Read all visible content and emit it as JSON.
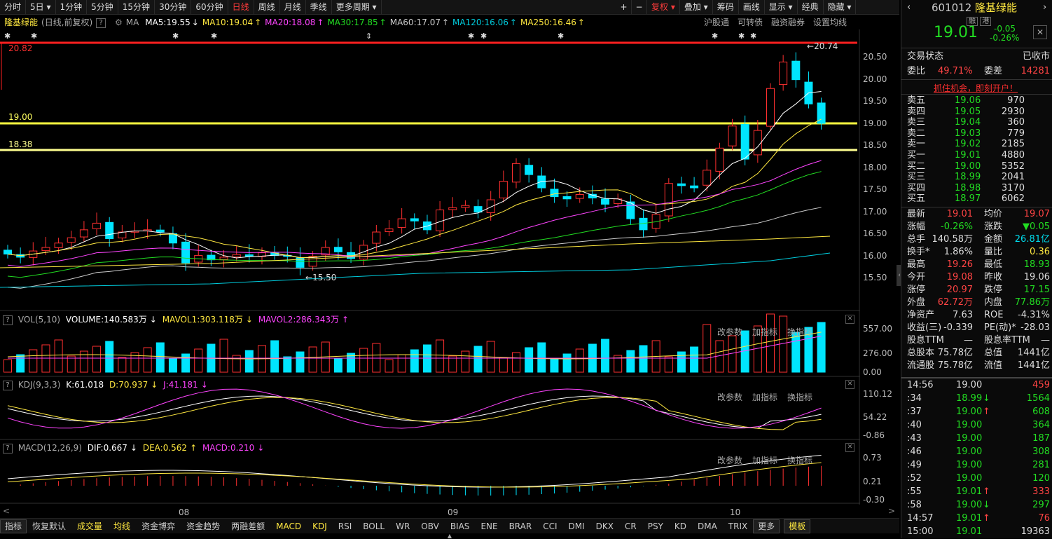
{
  "toolbar": {
    "periods": [
      "分时",
      "5日",
      "1分钟",
      "5分钟",
      "15分钟",
      "30分钟",
      "60分钟",
      "日线",
      "周线",
      "月线",
      "季线",
      "更多周期"
    ],
    "active": "日线",
    "right": [
      "+",
      "−",
      "复权",
      "叠加",
      "筹码",
      "画线",
      "显示",
      "经典",
      "隐藏"
    ]
  },
  "main": {
    "name": "隆基绿能",
    "mode": "(日线,前复权)",
    "ma_label": "MA",
    "ma": [
      {
        "t": "MA5:19.55",
        "c": "#ffffff",
        "arrow": "↓"
      },
      {
        "t": "MA10:19.04",
        "c": "#ffe840",
        "arrow": "↑"
      },
      {
        "t": "MA20:18.08",
        "c": "#ff44ff",
        "arrow": "↑"
      },
      {
        "t": "MA30:17.85",
        "c": "#22dd22",
        "arrow": "↑"
      },
      {
        "t": "MA60:17.07",
        "c": "#cccccc",
        "arrow": "↑"
      },
      {
        "t": "MA120:16.06",
        "c": "#00ccdd",
        "arrow": "↑"
      },
      {
        "t": "MA250:16.46",
        "c": "#ffe840",
        "arrow": "↑"
      }
    ],
    "links": [
      "沪股通",
      "可转债",
      "融资融券",
      "设置均线"
    ],
    "hlines": [
      {
        "label": "20.82",
        "color": "#ff2020"
      },
      {
        "label": "19.00",
        "color": "#ffff40"
      },
      {
        "label": "18.38",
        "color": "#ffff90"
      }
    ],
    "high_label": "20.74",
    "low_label": "15.50",
    "yaxis": [
      "20.50",
      "20.00",
      "19.50",
      "19.00",
      "18.50",
      "18.00",
      "17.50",
      "17.00",
      "16.50",
      "16.00",
      "15.50"
    ]
  },
  "vol": {
    "title": "VOL(5,10)",
    "v": "VOLUME:140.583万",
    "m1": "MAVOL1:303.118万",
    "m2": "MAVOL2:286.343万",
    "y": [
      "557.00",
      "276.00",
      "0.00"
    ],
    "btns": [
      "改参数",
      "加指标",
      "换指标"
    ]
  },
  "kdj": {
    "title": "KDJ(9,3,3)",
    "k": "K:61.018",
    "d": "D:70.937",
    "j": "J:41.181",
    "y": [
      "110.12",
      "54.22",
      "-0.86"
    ],
    "btns": [
      "改参数",
      "加指标",
      "换指标"
    ]
  },
  "macd": {
    "title": "MACD(12,26,9)",
    "dif": "DIF:0.667",
    "dea": "DEA:0.562",
    "macd": "MACD:0.210",
    "y": [
      "0.73",
      "0.21",
      "-0.30"
    ],
    "btns": [
      "改参数",
      "加指标",
      "换指标"
    ]
  },
  "xaxis": [
    "08",
    "09",
    "10"
  ],
  "bottom_tabs": [
    "指标",
    "恢复默认",
    "成交量",
    "均线",
    "资金博弈",
    "资金趋势",
    "两融差额",
    "MACD",
    "KDJ",
    "RSI",
    "BOLL",
    "WR",
    "OBV",
    "BIAS",
    "ENE",
    "BRAR",
    "CCI",
    "DMI",
    "DKX",
    "CR",
    "PSY",
    "KD",
    "DMA",
    "TRIX",
    "更多",
    "模板"
  ],
  "quote": {
    "code": "601012",
    "name": "隆基绿能",
    "tags": [
      "融",
      "港"
    ],
    "price": "19.01",
    "chg": "-0.05",
    "pct": "-0.26%",
    "status_label": "交易状态",
    "status": "已收市",
    "wb_label": "委比",
    "wb": "49.71%",
    "wc_label": "委差",
    "wc": "14281",
    "ad": "抓住机会，即刻开户！",
    "asks": [
      [
        "卖五",
        "19.06",
        "970"
      ],
      [
        "卖四",
        "19.05",
        "2930"
      ],
      [
        "卖三",
        "19.04",
        "360"
      ],
      [
        "卖二",
        "19.03",
        "779"
      ],
      [
        "卖一",
        "19.02",
        "2185"
      ]
    ],
    "bids": [
      [
        "买一",
        "19.01",
        "4880"
      ],
      [
        "买二",
        "19.00",
        "5352"
      ],
      [
        "买三",
        "18.99",
        "2041"
      ],
      [
        "买四",
        "18.98",
        "3170"
      ],
      [
        "买五",
        "18.97",
        "6062"
      ]
    ],
    "stats": [
      [
        "最新",
        "19.01",
        "r",
        "均价",
        "19.07",
        "r"
      ],
      [
        "涨幅",
        "-0.26%",
        "g",
        "涨跌",
        "▼0.05",
        "g"
      ],
      [
        "总手",
        "140.58万",
        "w",
        "金额",
        "26.81亿",
        "c"
      ],
      [
        "换手*",
        "1.86%",
        "w",
        "量比",
        "0.36",
        "y"
      ],
      [
        "最高",
        "19.26",
        "r",
        "最低",
        "18.93",
        "g"
      ],
      [
        "今开",
        "19.08",
        "r",
        "昨收",
        "19.06",
        "w"
      ],
      [
        "涨停",
        "20.97",
        "r",
        "跌停",
        "17.15",
        "g"
      ],
      [
        "外盘",
        "62.72万",
        "r",
        "内盘",
        "77.86万",
        "g"
      ],
      [
        "净资产",
        "7.63",
        "w",
        "ROE",
        "-4.31%",
        "w"
      ],
      [
        "收益(三)",
        "-0.339",
        "w",
        "PE(动)*",
        "-28.03",
        "w"
      ],
      [
        "股息TTM",
        "—",
        "w",
        "股息率TTM",
        "—",
        "w"
      ],
      [
        "总股本",
        "75.78亿",
        "w",
        "总值",
        "1441亿",
        "w"
      ],
      [
        "流通股",
        "75.78亿",
        "w",
        "流值",
        "1441亿",
        "w"
      ]
    ],
    "ticks": [
      [
        "14:56",
        "19.00",
        "w",
        "",
        "459",
        "r"
      ],
      [
        ":34",
        "18.99",
        "g",
        "↓",
        "1564",
        "g"
      ],
      [
        ":37",
        "19.00",
        "g",
        "↑",
        "608",
        "g"
      ],
      [
        ":40",
        "19.00",
        "g",
        "",
        "364",
        "g"
      ],
      [
        ":43",
        "19.00",
        "g",
        "",
        "187",
        "g"
      ],
      [
        ":46",
        "19.00",
        "g",
        "",
        "308",
        "g"
      ],
      [
        ":49",
        "19.00",
        "g",
        "",
        "281",
        "g"
      ],
      [
        ":52",
        "19.00",
        "g",
        "",
        "120",
        "g"
      ],
      [
        ":55",
        "19.01",
        "g",
        "↑",
        "333",
        "r"
      ],
      [
        ":58",
        "19.00",
        "g",
        "↓",
        "297",
        "g"
      ],
      [
        "14:57",
        "19.01",
        "g",
        "↑",
        "76",
        "r"
      ],
      [
        "15:00",
        "19.01",
        "g",
        "",
        "19363",
        "w"
      ]
    ]
  }
}
